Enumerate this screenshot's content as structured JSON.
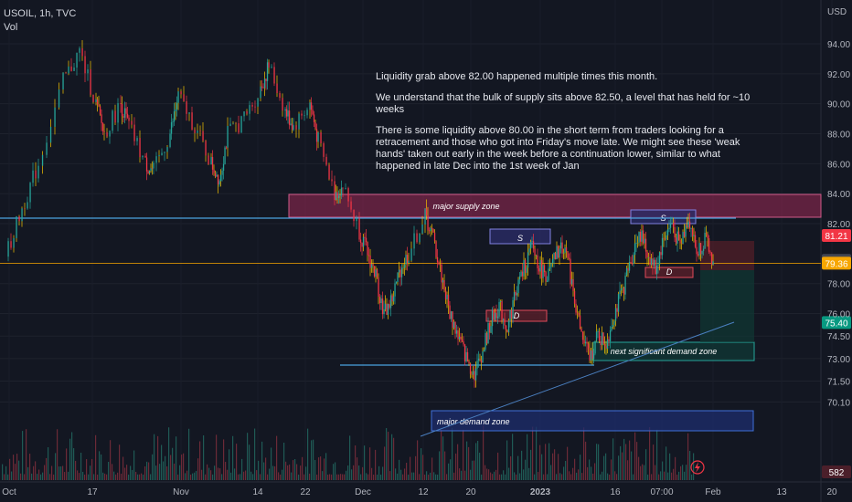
{
  "header": {
    "symbol": "USOIL, 1h, TVC",
    "volume_label": "Vol"
  },
  "price_axis": {
    "currency": "USD",
    "ticks": [
      "94.00",
      "92.00",
      "90.00",
      "88.00",
      "86.00",
      "84.00",
      "82.00",
      "78.00",
      "76.00",
      "74.50",
      "73.00",
      "71.50",
      "70.10"
    ]
  },
  "time_axis": {
    "labels": [
      "Oct",
      "17",
      "Nov",
      "14",
      "22",
      "Dec",
      "12",
      "20",
      "2023",
      "16",
      "07:00",
      "Feb",
      "13",
      "20"
    ]
  },
  "price_badges": [
    {
      "text": "81.21",
      "color": "#f23645",
      "value": 81.21
    },
    {
      "text": "79.55",
      "color": "#434651",
      "value": 79.55
    },
    {
      "text": "79.36",
      "color": "#f7a600",
      "value": 79.36
    },
    {
      "text": "75.40",
      "color": "#089981",
      "value": 75.4
    }
  ],
  "volume_badge": "582",
  "annotations": {
    "note": [
      "Liquidity grab above 82.00 happened multiple times this month.",
      "We understand that the bulk of supply sits above 82.50, a level that has held for ~10 weeks",
      "There is some liquidity above 80.00 in the short term from traders looking for a retracement and those who got into Friday's move late. We might see these 'weak hands' taken out early in the week before a continuation lower, similar to what happened in late Dec into the 1st week of Jan"
    ],
    "major_supply_zone": "major supply zone",
    "next_demand_zone": "next significant demand zone",
    "major_demand_zone": "major demand zone",
    "s_label": "S",
    "d_label": "D"
  },
  "colors": {
    "background": "#131722",
    "up": "#26a69a",
    "down": "#f23645",
    "wick_highlight": "#f7c400",
    "supply_zone": "#9c2a56",
    "demand_zone": "#1e2e6e",
    "level_line": "#4aa3df",
    "price_line": "#f7a600"
  },
  "chart_data": {
    "type": "line",
    "xlabel": "",
    "ylabel": "",
    "ylim": [
      69.5,
      95.0
    ],
    "x": [
      "Oct",
      "17",
      "Nov",
      "14",
      "22",
      "Dec",
      "12",
      "20",
      "2023",
      "16",
      "07:00"
    ],
    "series": [
      {
        "values": [
          79.8,
          90.0,
          85.0,
          88.0,
          82.5,
          78.5,
          72.0,
          77.5,
          74.0,
          80.5,
          81.8
        ]
      }
    ],
    "polyline": [
      [
        0,
        79.8
      ],
      [
        2,
        83.0
      ],
      [
        4,
        86.0
      ],
      [
        7,
        91.5
      ],
      [
        9,
        93.5
      ],
      [
        11,
        90.0
      ],
      [
        12,
        88.0
      ],
      [
        14,
        90.0
      ],
      [
        15,
        88.5
      ],
      [
        17,
        86.0
      ],
      [
        18,
        85.5
      ],
      [
        20,
        88.0
      ],
      [
        21,
        90.5
      ],
      [
        23,
        88.5
      ],
      [
        25,
        86.0
      ],
      [
        26,
        85.0
      ],
      [
        27,
        88.0
      ],
      [
        29,
        89.0
      ],
      [
        31,
        91.0
      ],
      [
        32,
        92.5
      ],
      [
        34,
        89.5
      ],
      [
        35,
        88.5
      ],
      [
        37,
        90.0
      ],
      [
        38,
        87.5
      ],
      [
        40,
        84.0
      ],
      [
        41,
        84.5
      ],
      [
        43,
        81.5
      ],
      [
        44,
        80.0
      ],
      [
        45,
        78.5
      ],
      [
        46,
        76.0
      ],
      [
        47,
        77.0
      ],
      [
        48,
        79.0
      ],
      [
        49,
        80.0
      ],
      [
        51,
        82.5
      ],
      [
        52,
        81.0
      ],
      [
        53,
        78.5
      ],
      [
        54,
        76.0
      ],
      [
        55,
        74.5
      ],
      [
        56,
        73.0
      ],
      [
        57,
        72.0
      ],
      [
        58,
        73.5
      ],
      [
        59,
        75.5
      ],
      [
        60,
        76.5
      ],
      [
        61,
        75.0
      ],
      [
        62,
        77.5
      ],
      [
        63,
        79.0
      ],
      [
        64,
        80.5
      ],
      [
        65,
        79.0
      ],
      [
        66,
        78.5
      ],
      [
        67,
        80.0
      ],
      [
        68,
        80.6
      ],
      [
        69,
        77.5
      ],
      [
        70,
        74.5
      ],
      [
        71,
        73.0
      ],
      [
        72,
        74.5
      ],
      [
        73,
        74.0
      ],
      [
        74,
        76.0
      ],
      [
        75,
        77.5
      ],
      [
        76,
        79.5
      ],
      [
        77,
        81.5
      ],
      [
        78,
        80.0
      ],
      [
        79,
        79.0
      ],
      [
        80,
        81.0
      ],
      [
        81,
        82.0
      ],
      [
        82,
        80.5
      ],
      [
        83,
        82.5
      ],
      [
        84,
        80.0
      ],
      [
        85,
        81.0
      ],
      [
        86,
        79.4
      ]
    ]
  }
}
